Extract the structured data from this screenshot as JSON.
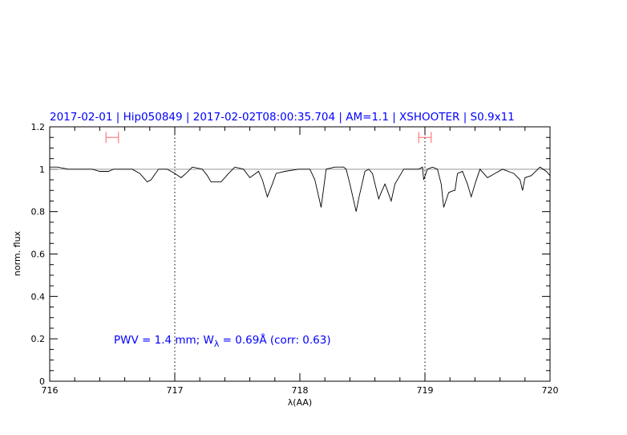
{
  "chart_data": {
    "type": "line",
    "title": "2017-02-01 | Hip050849 | 2017-02-02T08:00:35.704 | AM=1.1 | XSHOOTER | S0.9x11",
    "xlabel": "λ(AA)",
    "ylabel": "norm. flux",
    "xlim": [
      716,
      720
    ],
    "ylim": [
      0,
      1.2
    ],
    "x_ticks": [
      "716",
      "717",
      "718",
      "719",
      "720"
    ],
    "y_ticks": [
      "0",
      "0.2",
      "0.4",
      "0.6",
      "0.8",
      "1",
      "1.2"
    ],
    "grid": false,
    "reference_line_y": 1,
    "vertical_markers_x": [
      717,
      719
    ],
    "error_bars": [
      {
        "x": 716.5,
        "xerr": 0.05,
        "y": 1.15
      },
      {
        "x": 719.0,
        "xerr": 0.05,
        "y": 1.15
      }
    ],
    "annotation": {
      "pre": "PWV = 1.4 mm; W",
      "sub": "λ",
      "post": " = 0.69Å (corr: 0.63)"
    },
    "series": [
      {
        "x": [
          716.0,
          716.06,
          716.15,
          716.28,
          716.34,
          716.4,
          716.47,
          716.51,
          716.6,
          716.66,
          716.72,
          716.78,
          716.81,
          716.87,
          716.94,
          717.0,
          717.05,
          717.09,
          717.14,
          717.22,
          717.26,
          717.29,
          717.37,
          717.43,
          717.48,
          717.55,
          717.6,
          717.67,
          717.7,
          717.74,
          717.78,
          717.81,
          717.88,
          717.99,
          718.06,
          718.08,
          718.12,
          718.17,
          718.21,
          718.28,
          718.35,
          718.37,
          718.4,
          718.45,
          718.47,
          718.52,
          718.55,
          718.58,
          718.63,
          718.65,
          718.68,
          718.7,
          718.73,
          718.76,
          718.83,
          718.95,
          718.98,
          718.99,
          719.02,
          719.06,
          719.1,
          719.13,
          719.15,
          719.19,
          719.23,
          719.24,
          719.26,
          719.3,
          719.34,
          719.37,
          719.4,
          719.44,
          719.5,
          719.56,
          719.62,
          719.71,
          719.76,
          719.78,
          719.8,
          719.85,
          719.92,
          719.97,
          720.0
        ],
        "y": [
          1.01,
          1.01,
          1.0,
          1.0,
          1.0,
          0.99,
          0.99,
          1.0,
          1.0,
          1.0,
          0.98,
          0.94,
          0.95,
          1.0,
          1.0,
          0.98,
          0.96,
          0.98,
          1.01,
          1.0,
          0.97,
          0.94,
          0.94,
          0.98,
          1.01,
          1.0,
          0.96,
          0.99,
          0.95,
          0.87,
          0.93,
          0.98,
          0.99,
          1.0,
          1.0,
          1.0,
          0.95,
          0.82,
          1.0,
          1.01,
          1.01,
          1.0,
          0.93,
          0.8,
          0.86,
          0.99,
          1.0,
          0.98,
          0.86,
          0.89,
          0.93,
          0.9,
          0.85,
          0.93,
          1.0,
          1.0,
          1.01,
          0.95,
          1.0,
          1.01,
          1.0,
          0.93,
          0.82,
          0.89,
          0.9,
          0.9,
          0.98,
          0.99,
          0.93,
          0.87,
          0.93,
          1.0,
          0.96,
          0.98,
          1.0,
          0.98,
          0.95,
          0.9,
          0.96,
          0.97,
          1.01,
          0.99,
          0.97
        ]
      }
    ]
  }
}
